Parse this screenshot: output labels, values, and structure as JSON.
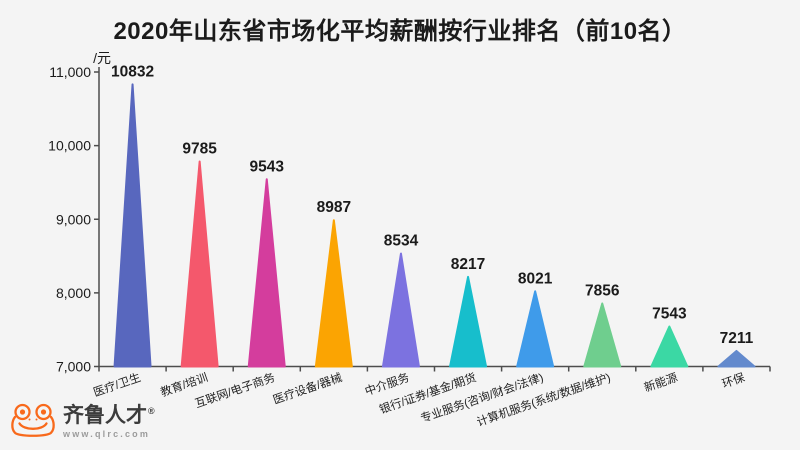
{
  "page": {
    "title": "2020年山东省市场化平均薪酬按行业排名（前10名）"
  },
  "chart_data": {
    "type": "bar",
    "variant": "triangle-peak",
    "title": "2020年山东省市场化平均薪酬按行业排名（前10名）",
    "unit_label": "/元",
    "categories": [
      "医疗/卫生",
      "教育/培训",
      "互联网/电子商务",
      "医疗设备/器械",
      "中介服务",
      "银行/证券/基金/期货",
      "专业服务(咨询/财会/法律)",
      "计算机服务(系统/数据/维护)",
      "新能源",
      "环保"
    ],
    "values": [
      10832,
      9785,
      9543,
      8987,
      8534,
      8217,
      8021,
      7856,
      7543,
      7211
    ],
    "bar_colors": [
      "#5867BE",
      "#F4586C",
      "#D43D9D",
      "#FBA402",
      "#7C72E0",
      "#17BECC",
      "#3F9BEA",
      "#6FCE8E",
      "#3BD8A4",
      "#638ACD"
    ],
    "ylim": [
      7000,
      11000
    ],
    "y_ticks": [
      11000,
      10000,
      9000,
      8000,
      7000
    ],
    "y_tick_labels": [
      "11,000",
      "10,000",
      "9,000",
      "8,000",
      "7,000"
    ],
    "xlabel": "",
    "ylabel": "元",
    "grid": false,
    "legend": false,
    "value_labels_shown": true
  },
  "colors": {
    "background": "#F4F4F4",
    "axis": "#4D4D4D",
    "text": "#1B1B1B",
    "logo_orange": "#F8691B",
    "logo_text": "#3C3C3C",
    "logo_url_gray": "#9B9B9B"
  },
  "logo": {
    "brand": "齐鲁人才",
    "registered": "®",
    "url": "www.qlrc.com"
  }
}
